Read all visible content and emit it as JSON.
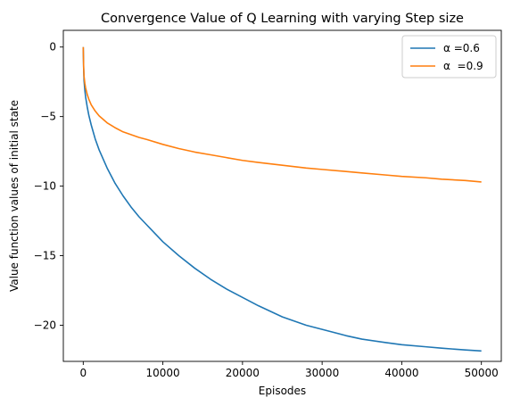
{
  "chart_data": {
    "type": "line",
    "title": "Convergence Value of Q Learning with varying Step size",
    "xlabel": "Episodes",
    "ylabel": "Value function values of initial state",
    "xlim": [
      -2500,
      52500
    ],
    "ylim": [
      -22.6,
      1.2
    ],
    "xticks": [
      0,
      10000,
      20000,
      30000,
      40000,
      50000
    ],
    "xtick_labels": [
      "0",
      "10000",
      "20000",
      "30000",
      "40000",
      "50000"
    ],
    "yticks": [
      0,
      -5,
      -10,
      -15,
      -20
    ],
    "ytick_labels": [
      "0",
      "−5",
      "−10",
      "−15",
      "−20"
    ],
    "grid": false,
    "legend_position": "top-right",
    "series": [
      {
        "name": "α =0.6",
        "color": "#1f77b4",
        "x": [
          0,
          50,
          100,
          200,
          300,
          500,
          700,
          1000,
          1500,
          2000,
          3000,
          4000,
          5000,
          6000,
          7000,
          8000,
          10000,
          12000,
          14000,
          16000,
          18000,
          20000,
          22000,
          25000,
          28000,
          30000,
          33000,
          35000,
          38000,
          40000,
          43000,
          45000,
          48000,
          50000
        ],
        "y": [
          0,
          -1.5,
          -2.4,
          -3.1,
          -3.6,
          -4.3,
          -4.9,
          -5.6,
          -6.6,
          -7.4,
          -8.7,
          -9.8,
          -10.7,
          -11.5,
          -12.2,
          -12.8,
          -14.0,
          -15.0,
          -15.9,
          -16.7,
          -17.4,
          -18.0,
          -18.6,
          -19.4,
          -20.0,
          -20.3,
          -20.75,
          -21.0,
          -21.25,
          -21.4,
          -21.55,
          -21.65,
          -21.78,
          -21.85
        ]
      },
      {
        "name": "α  =0.9",
        "color": "#ff7f0e",
        "x": [
          0,
          50,
          100,
          200,
          300,
          500,
          700,
          1000,
          1500,
          2000,
          3000,
          4000,
          5000,
          6000,
          7000,
          8000,
          10000,
          12000,
          14000,
          16000,
          18000,
          20000,
          22000,
          25000,
          28000,
          30000,
          33000,
          35000,
          38000,
          40000,
          43000,
          45000,
          48000,
          50000
        ],
        "y": [
          0,
          -1.4,
          -2.1,
          -2.6,
          -2.95,
          -3.4,
          -3.75,
          -4.15,
          -4.6,
          -4.95,
          -5.45,
          -5.8,
          -6.1,
          -6.3,
          -6.5,
          -6.65,
          -7.0,
          -7.3,
          -7.55,
          -7.75,
          -7.95,
          -8.15,
          -8.3,
          -8.5,
          -8.7,
          -8.8,
          -8.95,
          -9.05,
          -9.2,
          -9.3,
          -9.4,
          -9.5,
          -9.6,
          -9.7
        ]
      }
    ]
  }
}
